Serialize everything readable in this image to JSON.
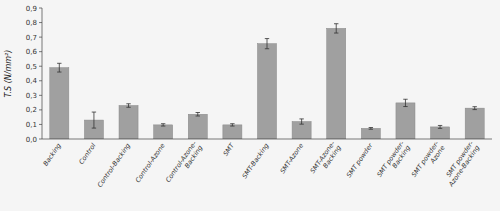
{
  "chart_data": {
    "type": "bar",
    "categories": [
      "Backing",
      "Control",
      "Control-Backing",
      "Control-Azone",
      "Control-Azone-\nBacking",
      "SMT",
      "SMT-Backing",
      "SMT-Azone",
      "SMT-Azone-\nBacking",
      "SMT powder",
      "SMT powder-\nBacking",
      "SMT powder-\nAzone",
      "SMT powder-\nAzone-Backing"
    ],
    "values": [
      0.49,
      0.13,
      0.23,
      0.097,
      0.17,
      0.097,
      0.655,
      0.12,
      0.76,
      0.073,
      0.248,
      0.083,
      0.212
    ],
    "errors": [
      0.03,
      0.055,
      0.012,
      0.008,
      0.012,
      0.008,
      0.035,
      0.018,
      0.032,
      0.006,
      0.025,
      0.01,
      0.01
    ],
    "color": "#a0a0a0",
    "ylabel": "T.S (N/mm²)",
    "ylim": [
      0.0,
      0.9
    ],
    "yticks": [
      {
        "value": 0.0,
        "label": "0,0"
      },
      {
        "value": 0.1,
        "label": "0,1"
      },
      {
        "value": 0.2,
        "label": "0,2"
      },
      {
        "value": 0.3,
        "label": "0,3"
      },
      {
        "value": 0.4,
        "label": "0,4"
      },
      {
        "value": 0.5,
        "label": "0,5"
      },
      {
        "value": 0.6,
        "label": "0,6"
      },
      {
        "value": 0.7,
        "label": "0,7"
      },
      {
        "value": 0.8,
        "label": "0,8"
      },
      {
        "value": 0.9,
        "label": "0,9"
      }
    ],
    "grid": false
  }
}
